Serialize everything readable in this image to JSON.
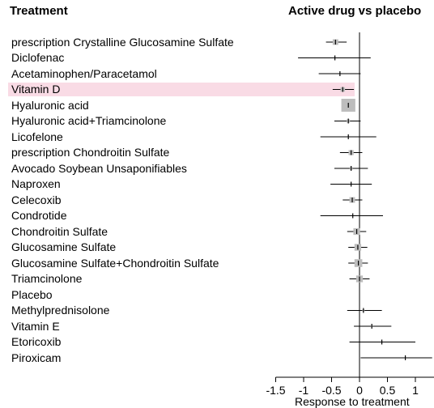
{
  "header": {
    "left": "Treatment",
    "right": "Active drug vs placebo"
  },
  "chart_data": {
    "type": "forest",
    "xlabel": "Response to treatment",
    "xlim": [
      -1.5,
      1.3
    ],
    "xticks": [
      "-1.5",
      "-1",
      "-0.5",
      "0",
      "0.5",
      "1"
    ],
    "reference_line": 0,
    "highlight_color": "#f9dbe5",
    "box_color": "#bdbdbd",
    "rows": [
      {
        "label": "prescription Crystalline Glucosamine Sulfate",
        "est": -0.43,
        "lo": -0.6,
        "hi": -0.23,
        "box": 0.1,
        "highlight": false
      },
      {
        "label": "Diclofenac",
        "est": -0.44,
        "lo": -1.1,
        "hi": 0.2,
        "box": 0,
        "highlight": false
      },
      {
        "label": "Acetaminophen/Paracetamol",
        "est": -0.35,
        "lo": -0.73,
        "hi": 0.02,
        "box": 0,
        "highlight": false
      },
      {
        "label": "Vitamin D",
        "est": -0.3,
        "lo": -0.48,
        "hi": -0.1,
        "box": 0.08,
        "highlight": true
      },
      {
        "label": "Hyaluronic acid",
        "est": -0.2,
        "lo": -0.3,
        "hi": -0.1,
        "box": 0.25,
        "highlight": false
      },
      {
        "label": "Hyaluronic acid+Triamcinolone",
        "est": -0.2,
        "lo": -0.45,
        "hi": 0.02,
        "box": 0.06,
        "highlight": false
      },
      {
        "label": "Licofelone",
        "est": -0.2,
        "lo": -0.7,
        "hi": 0.3,
        "box": 0,
        "highlight": false
      },
      {
        "label": "prescription Chondroitin Sulfate",
        "est": -0.15,
        "lo": -0.35,
        "hi": 0.05,
        "box": 0.09,
        "highlight": false
      },
      {
        "label": "Avocado Soybean Unsaponifiables",
        "est": -0.15,
        "lo": -0.45,
        "hi": 0.15,
        "box": 0.05,
        "highlight": false
      },
      {
        "label": "Naproxen",
        "est": -0.15,
        "lo": -0.52,
        "hi": 0.22,
        "box": 0,
        "highlight": false
      },
      {
        "label": "Celecoxib",
        "est": -0.13,
        "lo": -0.3,
        "hi": 0.05,
        "box": 0.1,
        "highlight": false
      },
      {
        "label": "Condrotide",
        "est": -0.12,
        "lo": -0.7,
        "hi": 0.42,
        "box": 0,
        "highlight": false
      },
      {
        "label": "Chondroitin Sulfate",
        "est": -0.05,
        "lo": -0.22,
        "hi": 0.12,
        "box": 0.12,
        "highlight": false
      },
      {
        "label": "Glucosamine Sulfate",
        "est": -0.03,
        "lo": -0.2,
        "hi": 0.14,
        "box": 0.12,
        "highlight": false
      },
      {
        "label": "Glucosamine Sulfate+Chondroitin Sulfate",
        "est": -0.02,
        "lo": -0.2,
        "hi": 0.15,
        "box": 0.14,
        "highlight": false
      },
      {
        "label": "Triamcinolone",
        "est": 0,
        "lo": -0.18,
        "hi": 0.18,
        "box": 0.12,
        "highlight": false
      },
      {
        "label": "Placebo",
        "est": null,
        "lo": null,
        "hi": null,
        "box": 0,
        "highlight": false
      },
      {
        "label": "Methylprednisolone",
        "est": 0.07,
        "lo": -0.22,
        "hi": 0.4,
        "box": 0.04,
        "highlight": false
      },
      {
        "label": "Vitamin E",
        "est": 0.22,
        "lo": -0.1,
        "hi": 0.57,
        "box": 0.03,
        "highlight": false
      },
      {
        "label": "Etoricoxib",
        "est": 0.4,
        "lo": -0.18,
        "hi": 1.0,
        "box": 0,
        "highlight": false
      },
      {
        "label": "Piroxicam",
        "est": 0.82,
        "lo": 0.02,
        "hi": 1.3,
        "box": 0,
        "highlight": false
      }
    ]
  }
}
